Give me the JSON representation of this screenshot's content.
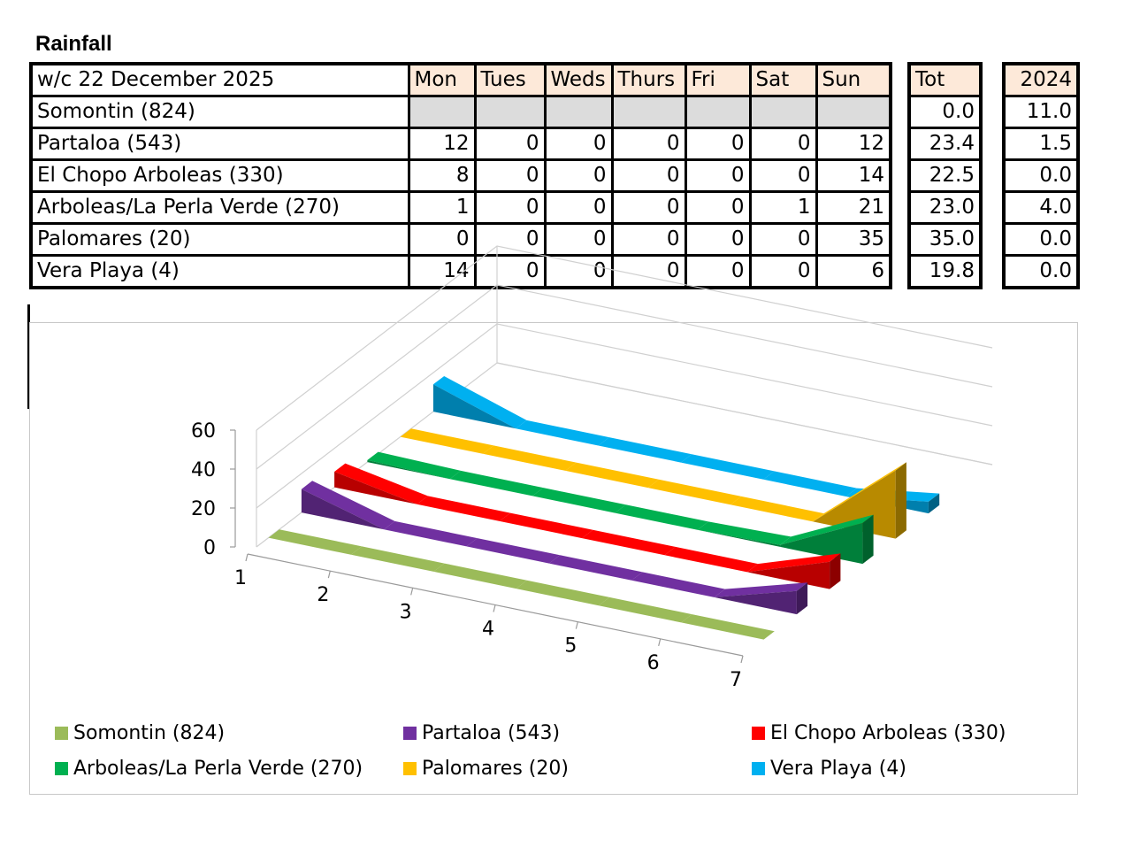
{
  "heading": "Rainfall",
  "week_label": "w/c 22 December  2025",
  "days": [
    "Mon",
    "Tues",
    "Weds",
    "Thurs",
    "Fri",
    "Sat",
    "Sun"
  ],
  "tot_header": "Tot",
  "year_header": "2024",
  "stations": [
    {
      "name": "Somontin (824)",
      "daily": [
        "",
        "",
        "",
        "",
        "",
        "",
        ""
      ],
      "tot": "0.0",
      "prev": "11.0",
      "color": "#9bbb59"
    },
    {
      "name": "Partaloa (543)",
      "daily": [
        "12",
        "0",
        "0",
        "0",
        "0",
        "0",
        "12"
      ],
      "tot": "23.4",
      "prev": "1.5",
      "color": "#7030a0"
    },
    {
      "name": "El Chopo Arboleas (330)",
      "daily": [
        "8",
        "0",
        "0",
        "0",
        "0",
        "0",
        "14"
      ],
      "tot": "22.5",
      "prev": "0.0",
      "color": "#ff0000"
    },
    {
      "name": "Arboleas/La Perla Verde (270)",
      "daily": [
        "1",
        "0",
        "0",
        "0",
        "0",
        "1",
        "21"
      ],
      "tot": "23.0",
      "prev": "4.0",
      "color": "#00b050"
    },
    {
      "name": "Palomares (20)",
      "daily": [
        "0",
        "0",
        "0",
        "0",
        "0",
        "0",
        "35"
      ],
      "tot": "35.0",
      "prev": "0.0",
      "color": "#ffc000"
    },
    {
      "name": "Vera Playa (4)",
      "daily": [
        "14",
        "0",
        "0",
        "0",
        "0",
        "0",
        "6"
      ],
      "tot": "19.8",
      "prev": "0.0",
      "color": "#00b0f0"
    }
  ],
  "chart_data": {
    "type": "line",
    "x": [
      1,
      2,
      3,
      4,
      5,
      6,
      7
    ],
    "ylim": [
      0,
      60
    ],
    "yticks": [
      0,
      20,
      40,
      60
    ],
    "grid": true,
    "legend": "bottom",
    "series": [
      {
        "name": "Somontin (824)",
        "values": [
          0,
          0,
          0,
          0,
          0,
          0,
          0
        ]
      },
      {
        "name": "Partaloa (543)",
        "values": [
          12,
          0,
          0,
          0,
          0,
          0,
          12
        ]
      },
      {
        "name": "El Chopo Arboleas (330)",
        "values": [
          8,
          0,
          0,
          0,
          0,
          0,
          14
        ]
      },
      {
        "name": "Arboleas/La Perla Verde (270)",
        "values": [
          1,
          0,
          0,
          0,
          0,
          1,
          21
        ]
      },
      {
        "name": "Palomares (20)",
        "values": [
          0,
          0,
          0,
          0,
          0,
          0,
          35
        ]
      },
      {
        "name": "Vera Playa (4)",
        "values": [
          14,
          0,
          0,
          0,
          0,
          0,
          6
        ]
      }
    ]
  }
}
